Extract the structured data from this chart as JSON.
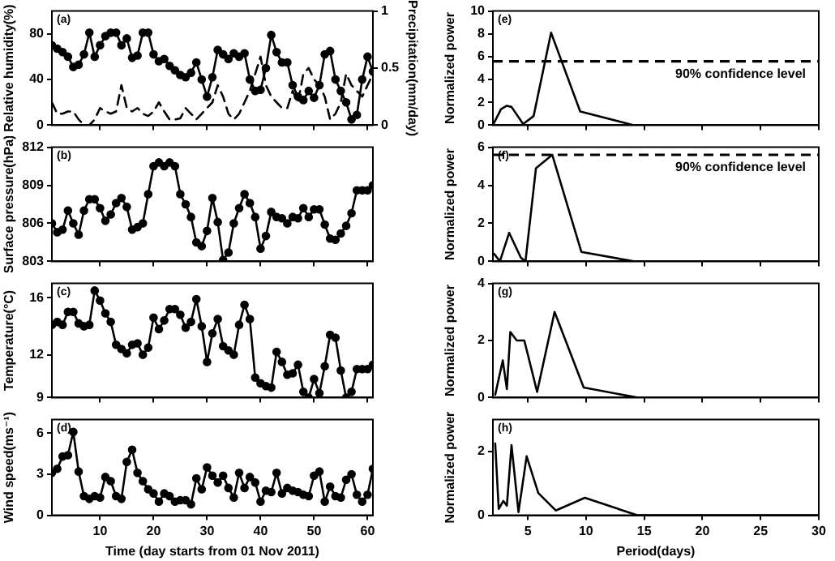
{
  "chart_data": [
    {
      "type": "line",
      "ylabel": "Relative humidity(%)",
      "y2label": "Precipitation(mm/day)",
      "annotations": [
        "(a)"
      ],
      "marker": "circle",
      "tick_labels": "y",
      "xlim": [
        1,
        61
      ],
      "xticks": [
        10,
        20,
        30,
        40,
        50,
        60
      ],
      "ylim": [
        0,
        100
      ],
      "yticks": [
        0,
        40,
        80
      ],
      "y2lim": [
        0,
        1
      ],
      "y2ticks": [
        0,
        0.5,
        1
      ],
      "x": [
        1,
        2,
        3,
        4,
        5,
        6,
        7,
        8,
        9,
        10,
        11,
        12,
        13,
        14,
        15,
        16,
        17,
        18,
        19,
        20,
        21,
        22,
        23,
        24,
        25,
        26,
        27,
        28,
        29,
        30,
        31,
        32,
        33,
        34,
        35,
        36,
        37,
        38,
        39,
        40,
        41,
        42,
        43,
        44,
        45,
        46,
        47,
        48,
        49,
        50,
        51,
        52,
        53,
        54,
        55,
        56,
        57,
        58,
        59,
        60,
        61
      ],
      "series": [
        {
          "color": "#000000",
          "values": [
            70,
            67,
            64,
            60,
            51,
            53,
            62,
            81,
            60,
            70,
            78,
            81,
            81,
            70,
            76,
            59,
            61,
            81,
            81,
            62,
            56,
            58,
            52,
            48,
            44,
            42,
            46,
            55,
            40,
            25,
            42,
            66,
            62,
            58,
            63,
            60,
            63,
            40,
            30,
            31,
            50,
            79,
            64,
            55,
            55,
            35,
            25,
            22,
            30,
            24,
            35,
            62,
            65,
            40,
            30,
            20,
            5,
            9,
            40,
            60,
            47
          ]
        },
        {
          "color": "#000000",
          "axis": "y2",
          "marker": "none",
          "line_style": "dashed",
          "values": [
            0.2,
            0.1,
            0.1,
            0.12,
            0.12,
            0.05,
            0,
            0,
            0.05,
            0.15,
            0.12,
            0.1,
            0.12,
            0.35,
            0.15,
            0.12,
            0.15,
            0.1,
            0.08,
            0.12,
            0.2,
            0.12,
            0.05,
            0.05,
            0.06,
            0.15,
            0.1,
            0.05,
            0.1,
            0.15,
            0.2,
            0.35,
            0.25,
            0.1,
            0.05,
            0.1,
            0.2,
            0.3,
            0.45,
            0.6,
            0.35,
            0.25,
            0.2,
            0.15,
            0.15,
            0.3,
            0.2,
            0.45,
            0.5,
            0.4,
            0.35,
            0.25,
            0.05,
            0.1,
            0.2,
            0.45,
            0.35,
            0.3,
            0.25,
            0.35,
            0.45
          ]
        }
      ]
    },
    {
      "type": "line",
      "ylabel": "Surface pressure(hPa)",
      "annotations": [
        "(b)"
      ],
      "marker": "circle",
      "tick_labels": "y",
      "xlim": [
        1,
        61
      ],
      "xticks": [
        10,
        20,
        30,
        40,
        50,
        60
      ],
      "ylim": [
        803,
        812
      ],
      "yticks": [
        803,
        806,
        809,
        812
      ],
      "x": [
        1,
        2,
        3,
        4,
        5,
        6,
        7,
        8,
        9,
        10,
        11,
        12,
        13,
        14,
        15,
        16,
        17,
        18,
        19,
        20,
        21,
        22,
        23,
        24,
        25,
        26,
        27,
        28,
        29,
        30,
        31,
        32,
        33,
        34,
        35,
        36,
        37,
        38,
        39,
        40,
        41,
        42,
        43,
        44,
        45,
        46,
        47,
        48,
        49,
        50,
        51,
        52,
        53,
        54,
        55,
        56,
        57,
        58,
        59,
        60,
        61
      ],
      "series": [
        {
          "color": "#000000",
          "values": [
            806.0,
            805.3,
            805.5,
            807.0,
            806.0,
            805.1,
            807.0,
            807.9,
            807.9,
            807.2,
            806.2,
            806.7,
            807.6,
            808.0,
            807.3,
            805.5,
            805.7,
            806.0,
            808.3,
            810.5,
            810.8,
            810.5,
            810.8,
            810.5,
            808.3,
            807.5,
            806.5,
            804.5,
            804.2,
            805.4,
            808.0,
            806.1,
            803.1,
            803.7,
            806.0,
            807.2,
            808.3,
            807.6,
            806.5,
            804.0,
            805.0,
            806.9,
            806.5,
            806.4,
            806.0,
            806.5,
            806.4,
            807.2,
            806.5,
            807.1,
            807.1,
            805.9,
            804.8,
            804.7,
            805.2,
            805.8,
            806.8,
            808.6,
            808.6,
            808.6,
            809.0
          ]
        }
      ]
    },
    {
      "type": "line",
      "ylabel": "Temperature(°C)",
      "annotations": [
        "(c)"
      ],
      "marker": "circle",
      "tick_labels": "y",
      "xlim": [
        1,
        61
      ],
      "xticks": [
        10,
        20,
        30,
        40,
        50,
        60
      ],
      "ylim": [
        9,
        17
      ],
      "yticks": [
        9,
        12,
        16
      ],
      "x": [
        1,
        2,
        3,
        4,
        5,
        6,
        7,
        8,
        9,
        10,
        11,
        12,
        13,
        14,
        15,
        16,
        17,
        18,
        19,
        20,
        21,
        22,
        23,
        24,
        25,
        26,
        27,
        28,
        29,
        30,
        31,
        32,
        33,
        34,
        35,
        36,
        37,
        38,
        39,
        40,
        41,
        42,
        43,
        44,
        45,
        46,
        47,
        48,
        49,
        50,
        51,
        52,
        53,
        54,
        55,
        56,
        57,
        58,
        59,
        60,
        61
      ],
      "series": [
        {
          "color": "#000000",
          "values": [
            14.1,
            14.3,
            14.1,
            15.0,
            15.0,
            14.2,
            14.0,
            14.1,
            16.5,
            15.8,
            14.9,
            14.3,
            12.7,
            12.4,
            12.1,
            12.7,
            12.8,
            12.0,
            12.5,
            14.6,
            13.8,
            14.4,
            15.2,
            15.2,
            14.8,
            13.9,
            14.3,
            15.9,
            14.0,
            11.5,
            13.5,
            14.5,
            12.6,
            12.3,
            12.0,
            14.1,
            15.5,
            14.5,
            10.4,
            10.0,
            9.8,
            9.7,
            12.2,
            11.5,
            10.6,
            10.7,
            11.3,
            9.4,
            9.0,
            10.3,
            9.3,
            11.2,
            13.4,
            13.2,
            10.9,
            9.0,
            9.4,
            11.0,
            11.0,
            11.0,
            11.3
          ]
        }
      ]
    },
    {
      "type": "line",
      "ylabel": "Wind speed(ms⁻¹)",
      "xlabel": "Time (day starts from 01 Nov 2011)",
      "annotations": [
        "(d)"
      ],
      "marker": "circle",
      "xlim": [
        1,
        61
      ],
      "xticks": [
        10,
        20,
        30,
        40,
        50,
        60
      ],
      "ylim": [
        0,
        7
      ],
      "yticks": [
        0,
        3,
        6
      ],
      "x": [
        1,
        2,
        3,
        4,
        5,
        6,
        7,
        8,
        9,
        10,
        11,
        12,
        13,
        14,
        15,
        16,
        17,
        18,
        19,
        20,
        21,
        22,
        23,
        24,
        25,
        26,
        27,
        28,
        29,
        30,
        31,
        32,
        33,
        34,
        35,
        36,
        37,
        38,
        39,
        40,
        41,
        42,
        43,
        44,
        45,
        46,
        47,
        48,
        49,
        50,
        51,
        52,
        53,
        54,
        55,
        56,
        57,
        58,
        59,
        60,
        61
      ],
      "series": [
        {
          "color": "#000000",
          "values": [
            3.1,
            3.4,
            4.3,
            4.4,
            6.1,
            3.2,
            1.4,
            1.2,
            1.4,
            1.3,
            2.8,
            2.5,
            1.4,
            1.2,
            3.9,
            4.8,
            3.1,
            2.5,
            1.9,
            1.6,
            1.0,
            1.6,
            1.4,
            1.0,
            1.1,
            1.1,
            0.8,
            2.7,
            1.9,
            3.5,
            2.9,
            2.4,
            2.9,
            2.0,
            1.3,
            3.1,
            2.0,
            2.8,
            2.4,
            1.0,
            1.8,
            1.7,
            3.1,
            1.6,
            2.0,
            1.8,
            1.7,
            1.5,
            1.4,
            2.9,
            3.2,
            1.0,
            2.1,
            1.4,
            1.3,
            2.6,
            3.0,
            1.5,
            1.0,
            1.5,
            3.4
          ]
        }
      ]
    },
    {
      "type": "line",
      "ylabel": "Normalized power",
      "annotations": [
        "(e)"
      ],
      "tick_labels": "y",
      "xlim": [
        2,
        30
      ],
      "xticks": [
        5,
        10,
        15,
        20,
        25,
        30
      ],
      "ylim": [
        0,
        10
      ],
      "yticks": [
        0,
        2,
        4,
        6,
        8,
        10
      ],
      "ref_lines": [
        {
          "axis": "y",
          "value": 5.6,
          "label": "90% confidence level",
          "line_style": "dashed"
        }
      ],
      "x": [
        2,
        2.7,
        3.2,
        3.6,
        4.6,
        5.5,
        7,
        9.5,
        14.1,
        30
      ],
      "series": [
        {
          "color": "#000000",
          "values": [
            0,
            1.4,
            1.7,
            1.6,
            0.1,
            0.8,
            8.1,
            1.2,
            0,
            0
          ]
        }
      ]
    },
    {
      "type": "line",
      "ylabel": "Normalized power",
      "annotations": [
        "(f)"
      ],
      "tick_labels": "y",
      "xlim": [
        2,
        30
      ],
      "xticks": [
        5,
        10,
        15,
        20,
        25,
        30
      ],
      "ylim": [
        0,
        6
      ],
      "yticks": [
        0,
        2,
        4,
        6
      ],
      "ref_lines": [
        {
          "axis": "y",
          "value": 5.6,
          "label": "90% confidence level",
          "line_style": "dashed"
        }
      ],
      "x": [
        2.1,
        2.6,
        3.4,
        4.4,
        4.8,
        5.7,
        7.1,
        9.6,
        14.1,
        30
      ],
      "series": [
        {
          "color": "#000000",
          "values": [
            0.4,
            0,
            1.5,
            0.2,
            0,
            4.9,
            5.6,
            0.5,
            0,
            0
          ]
        }
      ]
    },
    {
      "type": "line",
      "ylabel": "Normalized power",
      "annotations": [
        "(g)"
      ],
      "tick_labels": "y",
      "xlim": [
        2,
        30
      ],
      "xticks": [
        5,
        10,
        15,
        20,
        25,
        30
      ],
      "ylim": [
        0,
        4
      ],
      "yticks": [
        0,
        2,
        4
      ],
      "x": [
        2.2,
        2.85,
        3.2,
        3.5,
        4.05,
        4.7,
        5.8,
        7.3,
        9.8,
        14.4,
        30
      ],
      "series": [
        {
          "color": "#000000",
          "values": [
            0.1,
            1.3,
            0.3,
            2.3,
            2.0,
            2.0,
            0.2,
            3.0,
            0.35,
            0,
            0
          ]
        }
      ]
    },
    {
      "type": "line",
      "ylabel": "Normalized power",
      "xlabel": "Period(days)",
      "annotations": [
        "(h)"
      ],
      "xlim": [
        2,
        30
      ],
      "xticks": [
        5,
        10,
        15,
        20,
        25,
        30
      ],
      "ylim": [
        0,
        3
      ],
      "yticks": [
        0,
        2
      ],
      "x": [
        2.2,
        2.5,
        2.9,
        3.2,
        3.6,
        4.2,
        4.9,
        5.9,
        7.4,
        9.9,
        14.4,
        30
      ],
      "series": [
        {
          "color": "#000000",
          "values": [
            2.25,
            0.2,
            0.45,
            0.3,
            2.2,
            0.1,
            1.85,
            0.7,
            0.15,
            0.55,
            0,
            0
          ]
        }
      ]
    }
  ]
}
